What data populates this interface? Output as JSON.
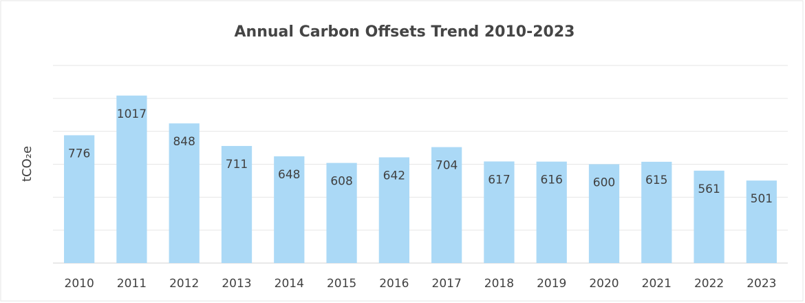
{
  "chart_data": {
    "type": "bar",
    "title": "Annual Carbon Offsets Trend 2010-2023",
    "y_label": "tCO₂e",
    "categories": [
      "2010",
      "2011",
      "2012",
      "2013",
      "2014",
      "2015",
      "2016",
      "2017",
      "2018",
      "2019",
      "2020",
      "2021",
      "2022",
      "2023"
    ],
    "values": [
      776,
      1017,
      848,
      711,
      648,
      608,
      642,
      704,
      617,
      616,
      600,
      615,
      561,
      501
    ],
    "color": "#abd9f6",
    "ylim": [
      0,
      1200
    ],
    "yticks": [
      0,
      200,
      400,
      600,
      800,
      1000,
      1200
    ],
    "ytick_labels": false,
    "grid": true,
    "data_labels": true
  }
}
